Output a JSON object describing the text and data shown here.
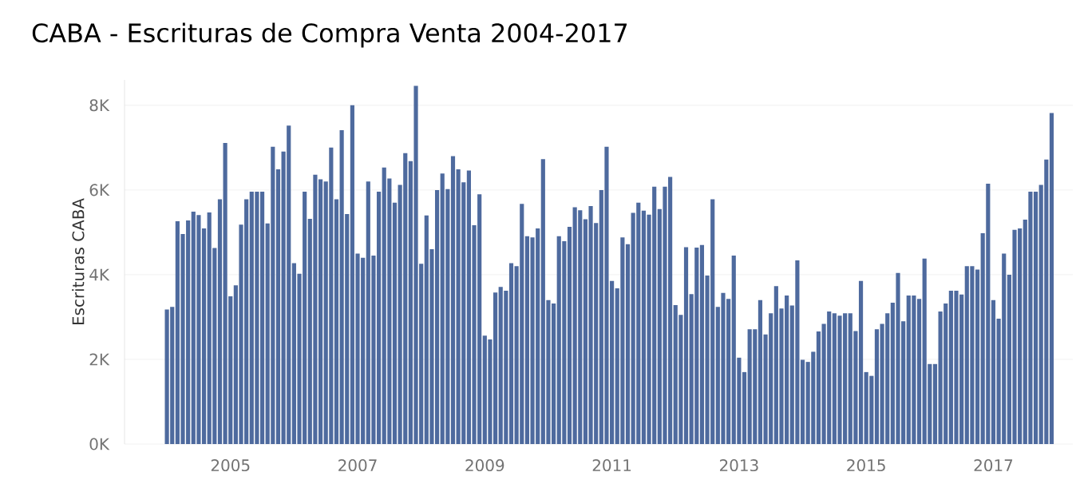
{
  "chart_data": {
    "type": "bar",
    "title": "CABA - Escrituras de Compra Venta 2004-2017",
    "ylabel": "Escrituras CABA",
    "x": [
      "2004-01",
      "2004-02",
      "2004-03",
      "2004-04",
      "2004-05",
      "2004-06",
      "2004-07",
      "2004-08",
      "2004-09",
      "2004-10",
      "2004-11",
      "2004-12",
      "2005-01",
      "2005-02",
      "2005-03",
      "2005-04",
      "2005-05",
      "2005-06",
      "2005-07",
      "2005-08",
      "2005-09",
      "2005-10",
      "2005-11",
      "2005-12",
      "2006-01",
      "2006-02",
      "2006-03",
      "2006-04",
      "2006-05",
      "2006-06",
      "2006-07",
      "2006-08",
      "2006-09",
      "2006-10",
      "2006-11",
      "2006-12",
      "2007-01",
      "2007-02",
      "2007-03",
      "2007-04",
      "2007-05",
      "2007-06",
      "2007-07",
      "2007-08",
      "2007-09",
      "2007-10",
      "2007-11",
      "2007-12",
      "2008-01",
      "2008-02",
      "2008-03",
      "2008-04",
      "2008-05",
      "2008-06",
      "2008-07",
      "2008-08",
      "2008-09",
      "2008-10",
      "2008-11",
      "2008-12",
      "2009-01",
      "2009-02",
      "2009-03",
      "2009-04",
      "2009-05",
      "2009-06",
      "2009-07",
      "2009-08",
      "2009-09",
      "2009-10",
      "2009-11",
      "2009-12",
      "2010-01",
      "2010-02",
      "2010-03",
      "2010-04",
      "2010-05",
      "2010-06",
      "2010-07",
      "2010-08",
      "2010-09",
      "2010-10",
      "2010-11",
      "2010-12",
      "2011-01",
      "2011-02",
      "2011-03",
      "2011-04",
      "2011-05",
      "2011-06",
      "2011-07",
      "2011-08",
      "2011-09",
      "2011-10",
      "2011-11",
      "2011-12",
      "2012-01",
      "2012-02",
      "2012-03",
      "2012-04",
      "2012-05",
      "2012-06",
      "2012-07",
      "2012-08",
      "2012-09",
      "2012-10",
      "2012-11",
      "2012-12",
      "2013-01",
      "2013-02",
      "2013-03",
      "2013-04",
      "2013-05",
      "2013-06",
      "2013-07",
      "2013-08",
      "2013-09",
      "2013-10",
      "2013-11",
      "2013-12",
      "2014-01",
      "2014-02",
      "2014-03",
      "2014-04",
      "2014-05",
      "2014-06",
      "2014-07",
      "2014-08",
      "2014-09",
      "2014-10",
      "2014-11",
      "2014-12",
      "2015-01",
      "2015-02",
      "2015-03",
      "2015-04",
      "2015-05",
      "2015-06",
      "2015-07",
      "2015-08",
      "2015-09",
      "2015-10",
      "2015-11",
      "2015-12",
      "2016-01",
      "2016-02",
      "2016-03",
      "2016-04",
      "2016-05",
      "2016-06",
      "2016-07",
      "2016-08",
      "2016-09",
      "2016-10",
      "2016-11",
      "2016-12",
      "2017-01",
      "2017-02",
      "2017-03",
      "2017-04",
      "2017-05",
      "2017-06",
      "2017-07",
      "2017-08",
      "2017-09",
      "2017-10",
      "2017-11",
      "2017-12"
    ],
    "values": [
      3180,
      3240,
      5260,
      4960,
      5280,
      5490,
      5410,
      5090,
      5470,
      4630,
      5780,
      7110,
      3490,
      3750,
      5180,
      5780,
      5960,
      5960,
      5960,
      5210,
      7020,
      6490,
      6910,
      7520,
      4270,
      4020,
      5960,
      5320,
      6360,
      6250,
      6200,
      7000,
      5780,
      7410,
      5430,
      8000,
      4500,
      4400,
      6200,
      4450,
      5960,
      6530,
      6270,
      5700,
      6120,
      6870,
      6680,
      8460,
      4260,
      5400,
      4600,
      6000,
      6390,
      6020,
      6800,
      6490,
      6180,
      6460,
      5170,
      5900,
      2560,
      2470,
      3580,
      3710,
      3620,
      4270,
      4200,
      5670,
      4910,
      4880,
      5090,
      6730,
      3400,
      3320,
      4910,
      4790,
      5130,
      5590,
      5520,
      5310,
      5620,
      5220,
      6000,
      7020,
      3850,
      3680,
      4880,
      4720,
      5460,
      5700,
      5510,
      5420,
      6080,
      5550,
      6080,
      6310,
      3280,
      3050,
      4650,
      3540,
      4640,
      4700,
      3980,
      5780,
      3240,
      3570,
      3430,
      4450,
      2040,
      1700,
      2710,
      2710,
      3400,
      2590,
      3090,
      3730,
      3200,
      3510,
      3270,
      4340,
      1990,
      1940,
      2180,
      2660,
      2840,
      3130,
      3090,
      3030,
      3090,
      3090,
      2670,
      3850,
      1700,
      1610,
      2710,
      2840,
      3090,
      3340,
      4040,
      2900,
      3510,
      3510,
      3430,
      4380,
      1890,
      1890,
      3130,
      3320,
      3620,
      3620,
      3530,
      4200,
      4200,
      4120,
      4980,
      6150,
      3400,
      2960,
      4500,
      4000,
      5060,
      5090,
      5300,
      5960,
      5960,
      6120,
      6720,
      7820
    ],
    "color": "#4e6a9e",
    "xlim": [
      "2003-05",
      "2018-04"
    ],
    "xticks": [
      {
        "value": "2005-01",
        "label": "2005"
      },
      {
        "value": "2007-01",
        "label": "2007"
      },
      {
        "value": "2009-01",
        "label": "2009"
      },
      {
        "value": "2011-01",
        "label": "2011"
      },
      {
        "value": "2013-01",
        "label": "2013"
      },
      {
        "value": "2015-01",
        "label": "2015"
      },
      {
        "value": "2017-01",
        "label": "2017"
      }
    ],
    "ylim": [
      0,
      8600
    ],
    "yticks": [
      {
        "value": 0,
        "label": "0K"
      },
      {
        "value": 2000,
        "label": "2K"
      },
      {
        "value": 4000,
        "label": "4K"
      },
      {
        "value": 6000,
        "label": "6K"
      },
      {
        "value": 8000,
        "label": "8K"
      }
    ],
    "grid": "y"
  }
}
